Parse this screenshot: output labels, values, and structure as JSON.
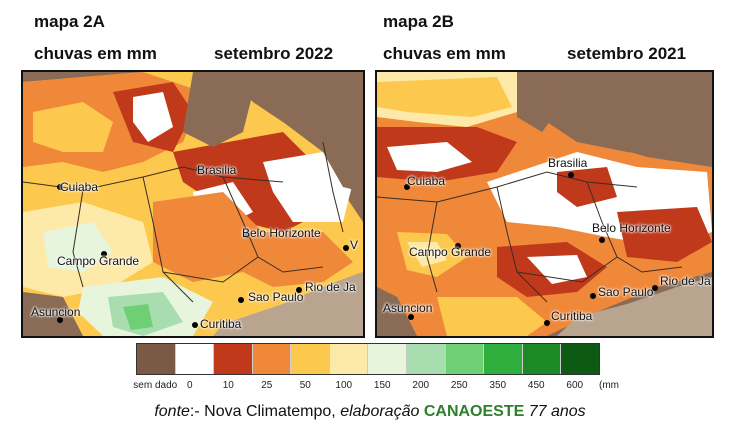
{
  "map_a": {
    "title": "mapa 2A",
    "variable": "chuvas em mm",
    "period": "setembro 2022",
    "cities": [
      "Cuiaba",
      "Brasilia",
      "Belo Horizonte",
      "Campo Grande",
      "Sao Paulo",
      "Rio de Ja",
      "Curitiba",
      "Asuncion",
      "V"
    ]
  },
  "map_b": {
    "title": "mapa 2B",
    "variable": "chuvas em mm",
    "period": "setembro 2021",
    "cities": [
      "Cuiaba",
      "Brasilia",
      "Belo Horizonte",
      "Campo Grande",
      "Sao Paulo",
      "Rio de Ja",
      "Curitiba",
      "Asuncion"
    ]
  },
  "legend": {
    "bins": [
      {
        "label": "sem dado",
        "color": "#7a5a45"
      },
      {
        "label": "0",
        "color": "#ffffff"
      },
      {
        "label": "10",
        "color": "#c0391b"
      },
      {
        "label": "25",
        "color": "#f0883a"
      },
      {
        "label": "50",
        "color": "#fdc84e"
      },
      {
        "label": "100",
        "color": "#fde9a8"
      },
      {
        "label": "150",
        "color": "#e6f5dc"
      },
      {
        "label": "200",
        "color": "#a8ddb0"
      },
      {
        "label": "250",
        "color": "#6fcf74"
      },
      {
        "label": "350",
        "color": "#2fae3d"
      },
      {
        "label": "450",
        "color": "#1b8a25"
      },
      {
        "label": "600",
        "color": "#0c5a14"
      }
    ],
    "unit": "(mm"
  },
  "source": {
    "prefix": "fonte",
    "sep": ":-",
    "provider": " Nova Climatempo, ",
    "elab": "elaboração",
    "brand": "CANAOESTE",
    "suffix": "77 anos"
  }
}
